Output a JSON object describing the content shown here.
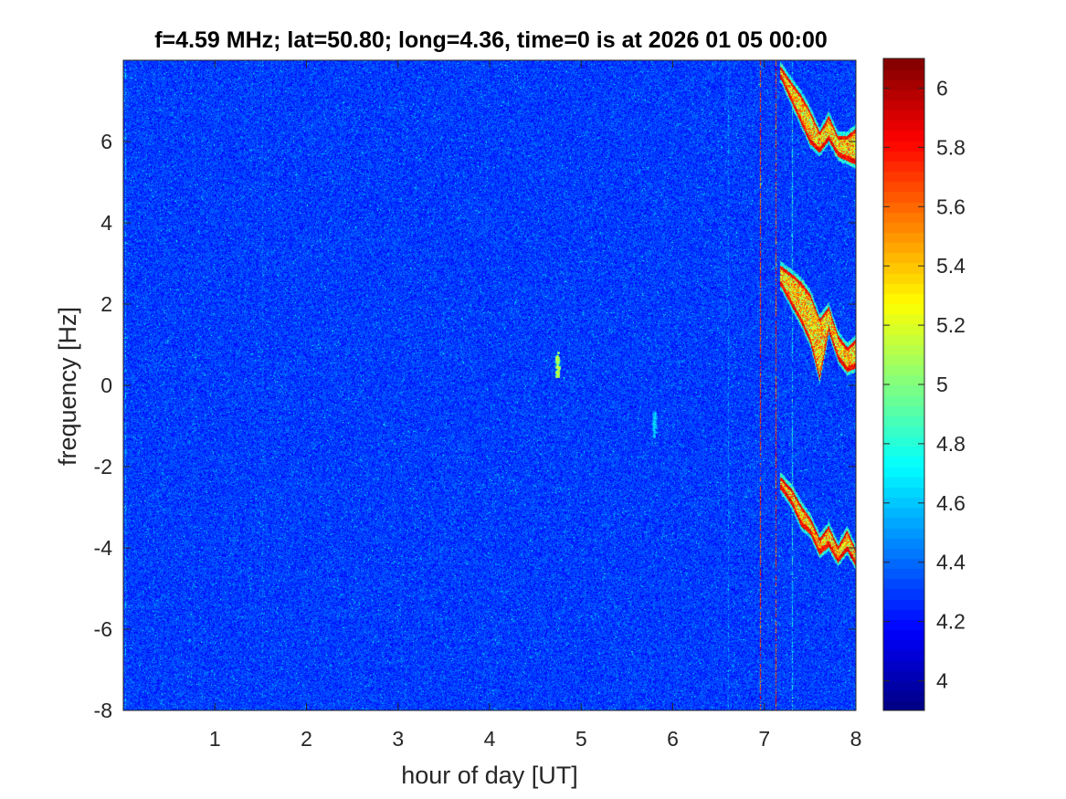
{
  "chart_data": {
    "type": "heatmap",
    "title": "f=4.59 MHz;  lat=50.80; long=4.36, time=0 is at 2026 01 05 00:00",
    "xlabel": "hour of day [UT]",
    "ylabel": "frequency [Hz]",
    "xlim": [
      0,
      8
    ],
    "ylim": [
      -8,
      8
    ],
    "xticks": [
      1,
      2,
      3,
      4,
      5,
      6,
      7,
      8
    ],
    "xtick_labels": [
      "1",
      "2",
      "3",
      "4",
      "5",
      "6",
      "7",
      "8"
    ],
    "yticks": [
      -8,
      -6,
      -4,
      -2,
      0,
      2,
      4,
      6
    ],
    "ytick_labels": [
      "-8",
      "-6",
      "-4",
      "-2",
      "0",
      "2",
      "4",
      "6"
    ],
    "colorbar": {
      "colormap": "jet",
      "clim": [
        3.9,
        6.1
      ],
      "ticks": [
        4,
        4.2,
        4.4,
        4.6,
        4.8,
        5,
        5.2,
        5.4,
        5.6,
        5.8,
        6
      ],
      "tick_labels": [
        "4",
        "4.2",
        "4.4",
        "4.6",
        "4.8",
        "5",
        "5.2",
        "5.4",
        "5.6",
        "5.8",
        "6"
      ]
    },
    "grid": false,
    "background_level": 4.3,
    "vertical_streaks": [
      {
        "x": 0.02,
        "level": 4.8
      },
      {
        "x": 1.52,
        "level": 4.6
      },
      {
        "x": 6.6,
        "level": 4.7
      },
      {
        "x": 6.95,
        "level": 6.0
      },
      {
        "x": 7.12,
        "level": 6.0
      },
      {
        "x": 7.3,
        "level": 5.0
      }
    ],
    "bright_spots": [
      {
        "x": 4.74,
        "y": 0.5,
        "level": 5.3
      },
      {
        "x": 5.8,
        "y": -1.0,
        "level": 4.8
      }
    ],
    "echo_traces": [
      {
        "name": "",
        "x": [
          7.18,
          7.3,
          7.4,
          7.5,
          7.6,
          7.7,
          7.8,
          7.9,
          8.0
        ],
        "upper": [
          2.9,
          2.7,
          2.5,
          2.2,
          1.6,
          1.9,
          1.2,
          0.9,
          1.1
        ],
        "lower": [
          2.5,
          2.0,
          1.6,
          1.1,
          0.2,
          1.4,
          0.7,
          0.4,
          0.5
        ],
        "level": 6.0
      },
      {
        "name": "",
        "x": [
          7.18,
          7.3,
          7.4,
          7.5,
          7.6,
          7.7,
          7.8,
          7.9,
          8.0
        ],
        "upper": [
          7.8,
          7.4,
          7.1,
          6.7,
          6.2,
          6.6,
          6.1,
          6.1,
          6.3
        ],
        "lower": [
          7.6,
          7.0,
          6.5,
          6.0,
          5.8,
          6.1,
          5.7,
          5.6,
          5.5
        ],
        "level": 6.0
      },
      {
        "name": "",
        "x": [
          7.18,
          7.3,
          7.4,
          7.5,
          7.6,
          7.7,
          7.8,
          7.9,
          8.0
        ],
        "upper": [
          -2.3,
          -2.6,
          -3.0,
          -3.3,
          -3.8,
          -3.5,
          -4.0,
          -3.6,
          -4.1
        ],
        "lower": [
          -2.5,
          -2.9,
          -3.4,
          -3.6,
          -4.1,
          -3.9,
          -4.3,
          -4.0,
          -4.4
        ],
        "level": 6.0
      }
    ]
  }
}
